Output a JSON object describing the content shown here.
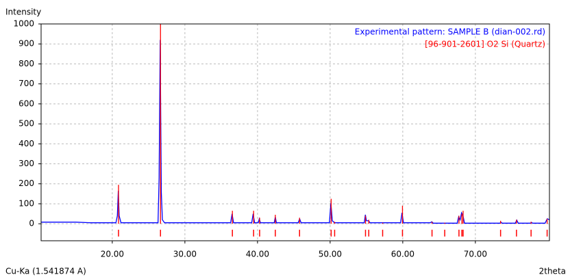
{
  "chart_data": {
    "type": "line",
    "y_label": "Intensity",
    "x_label": "2theta",
    "annotation": "Cu-Ka (1.541874 A)",
    "xlim": [
      10.2,
      80.2
    ],
    "ylim": [
      -85,
      1000
    ],
    "xticks": [
      {
        "value": 20,
        "label": "20.00"
      },
      {
        "value": 30,
        "label": "30.00"
      },
      {
        "value": 40,
        "label": "40.00"
      },
      {
        "value": 50,
        "label": "50.00"
      },
      {
        "value": 60,
        "label": "60.00"
      },
      {
        "value": 70,
        "label": "70.00"
      }
    ],
    "yticks": [
      0,
      100,
      200,
      300,
      400,
      500,
      600,
      700,
      800,
      900,
      1000
    ],
    "grid": true,
    "legend": "top-right",
    "series": [
      {
        "name": "Experimental pattern: SAMPLE B (dian-002.rd)",
        "color": "#0000ff",
        "type": "line",
        "x": [
          10.2,
          15,
          17,
          20.5,
          20.7,
          20.83,
          20.95,
          21.2,
          26.3,
          26.45,
          26.6,
          26.75,
          26.9,
          27.2,
          36.3,
          36.5,
          36.7,
          39.2,
          39.4,
          39.6,
          40.1,
          40.25,
          40.4,
          42.3,
          42.45,
          42.6,
          45.6,
          45.8,
          46.0,
          49.9,
          50.1,
          50.3,
          50.6,
          54.7,
          54.85,
          55.0,
          55.3,
          55.5,
          59.7,
          59.9,
          60.1,
          63.8,
          64.0,
          64.2,
          67.5,
          67.7,
          67.9,
          68.1,
          68.3,
          68.5,
          73.4,
          73.5,
          73.7,
          75.5,
          75.7,
          75.9,
          77.6,
          77.7,
          77.9,
          79.6,
          79.9,
          80.2
        ],
        "values": [
          8,
          8,
          5,
          5,
          40,
          165,
          40,
          5,
          5,
          230,
          920,
          160,
          20,
          5,
          5,
          50,
          5,
          5,
          50,
          5,
          5,
          25,
          5,
          5,
          35,
          5,
          5,
          25,
          5,
          5,
          105,
          15,
          5,
          5,
          45,
          15,
          15,
          5,
          5,
          55,
          5,
          5,
          10,
          3,
          3,
          35,
          20,
          55,
          40,
          3,
          3,
          8,
          3,
          3,
          18,
          3,
          3,
          7,
          3,
          3,
          25,
          20
        ]
      },
      {
        "name": "[96-901-2601] O2 Si  (Quartz)",
        "color": "#ff0000",
        "type": "stem",
        "x": [
          20.86,
          26.64,
          36.54,
          39.46,
          40.29,
          42.45,
          45.79,
          50.14,
          50.62,
          54.87,
          55.32,
          57.23,
          59.96,
          64.03,
          65.78,
          67.74,
          68.14,
          68.31,
          73.47,
          75.66,
          77.67,
          79.88
        ],
        "values": [
          195,
          1000,
          65,
          65,
          30,
          45,
          30,
          125,
          10,
          40,
          20,
          5,
          90,
          10,
          5,
          40,
          50,
          65,
          15,
          20,
          10,
          25
        ]
      }
    ]
  }
}
